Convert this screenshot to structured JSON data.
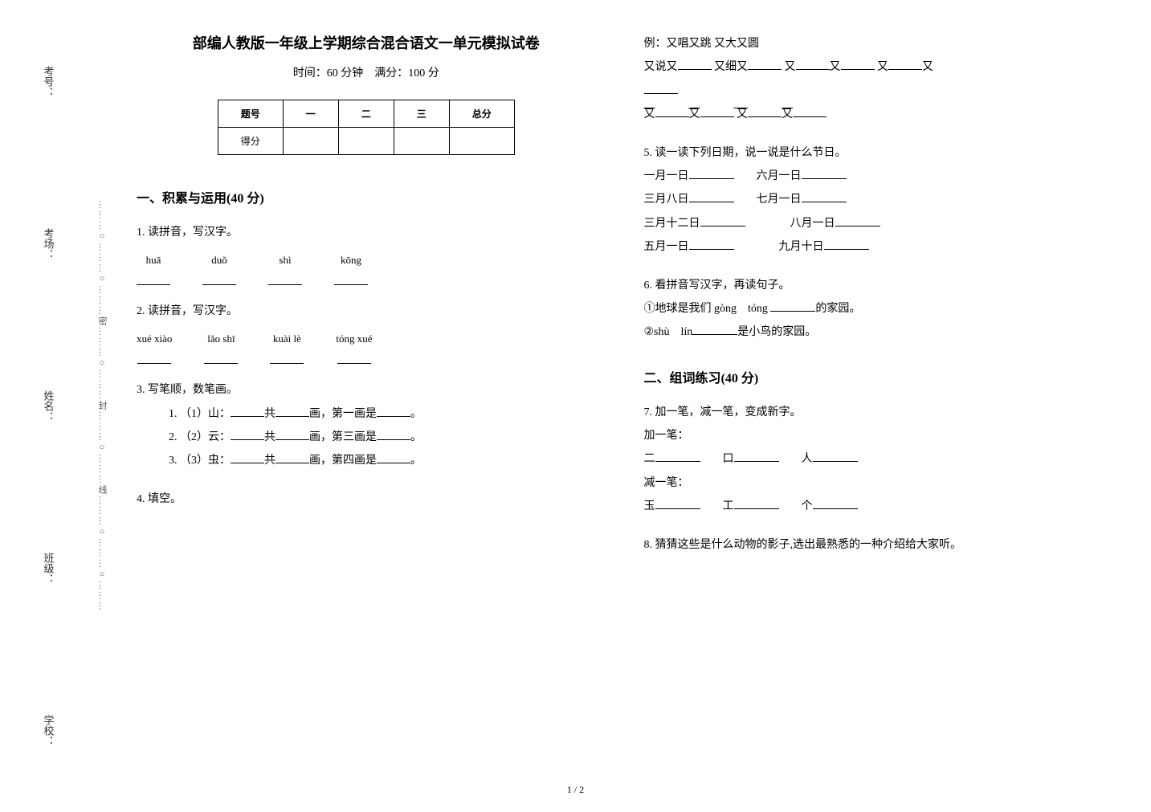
{
  "side": {
    "labels": [
      "考号：",
      "考场：",
      "姓名：",
      "班级：",
      "学校："
    ],
    "dotted": "………○………○………密………○………封………○………线………○………○………"
  },
  "header": {
    "title": "部编人教版一年级上学期综合混合语文一单元模拟试卷",
    "subtitle": "时间：60 分钟　满分：100 分"
  },
  "score_table": {
    "headers": [
      "题号",
      "一",
      "二",
      "三",
      "总分"
    ],
    "row_label": "得分"
  },
  "section1": {
    "title": "一、积累与运用(40 分)"
  },
  "q1": {
    "prompt": "1. 读拼音，写汉字。",
    "items": [
      "huā",
      "duǒ",
      "shì",
      "kōng"
    ]
  },
  "q2": {
    "prompt": "2. 读拼音，写汉字。",
    "items": [
      "xué xiào",
      "lǎo shī",
      "kuài lè",
      "tóng xué"
    ]
  },
  "q3": {
    "prompt": "3. 写笔顺，数笔画。",
    "lines": [
      {
        "idx": "1.",
        "label": "（1）山：",
        "mid": "共",
        "mid2": "画，第一画是",
        "end": "。"
      },
      {
        "idx": "2.",
        "label": "（2）云：",
        "mid": "共",
        "mid2": "画，第三画是",
        "end": "。"
      },
      {
        "idx": "3.",
        "label": "（3）虫：",
        "mid": "共",
        "mid2": "画，第四画是",
        "end": "。"
      }
    ]
  },
  "q4": {
    "prompt": "4. 填空。",
    "example": "例：又唱又跳 又大又圆",
    "row1": {
      "a": "又说又",
      "b": " 又细又",
      "c": " 又",
      "d": "又",
      "e": " 又",
      "f": "又"
    },
    "row2": {
      "a": "又",
      "b": "又",
      "c": " 又",
      "d": "又"
    }
  },
  "q5": {
    "prompt": "5. 读一读下列日期，说一说是什么节日。",
    "rows": [
      [
        "一月一日",
        "六月一日"
      ],
      [
        "三月八日",
        "七月一日"
      ],
      [
        "三月十二日",
        "八月一日"
      ],
      [
        "五月一日",
        "九月十日"
      ]
    ]
  },
  "q6": {
    "prompt": "6. 看拼音写汉字，再读句子。",
    "line1": {
      "a": "①地球是我们 gòng　tóng ",
      "b": "的家园。"
    },
    "line2": {
      "a": "②shù　lín",
      "b": "是小鸟的家园。"
    }
  },
  "section2": {
    "title": "二、组词练习(40 分)"
  },
  "q7": {
    "prompt": "7. 加一笔，减一笔，变成新字。",
    "add_label": "加一笔：",
    "add_items": [
      "二",
      "口",
      "人"
    ],
    "sub_label": "减一笔：",
    "sub_items": [
      "玉",
      "工",
      "个"
    ]
  },
  "q8": {
    "prompt": "8. 猜猜这些是什么动物的影子,选出最熟悉的一种介绍给大家听。"
  },
  "page_num": "1 / 2"
}
